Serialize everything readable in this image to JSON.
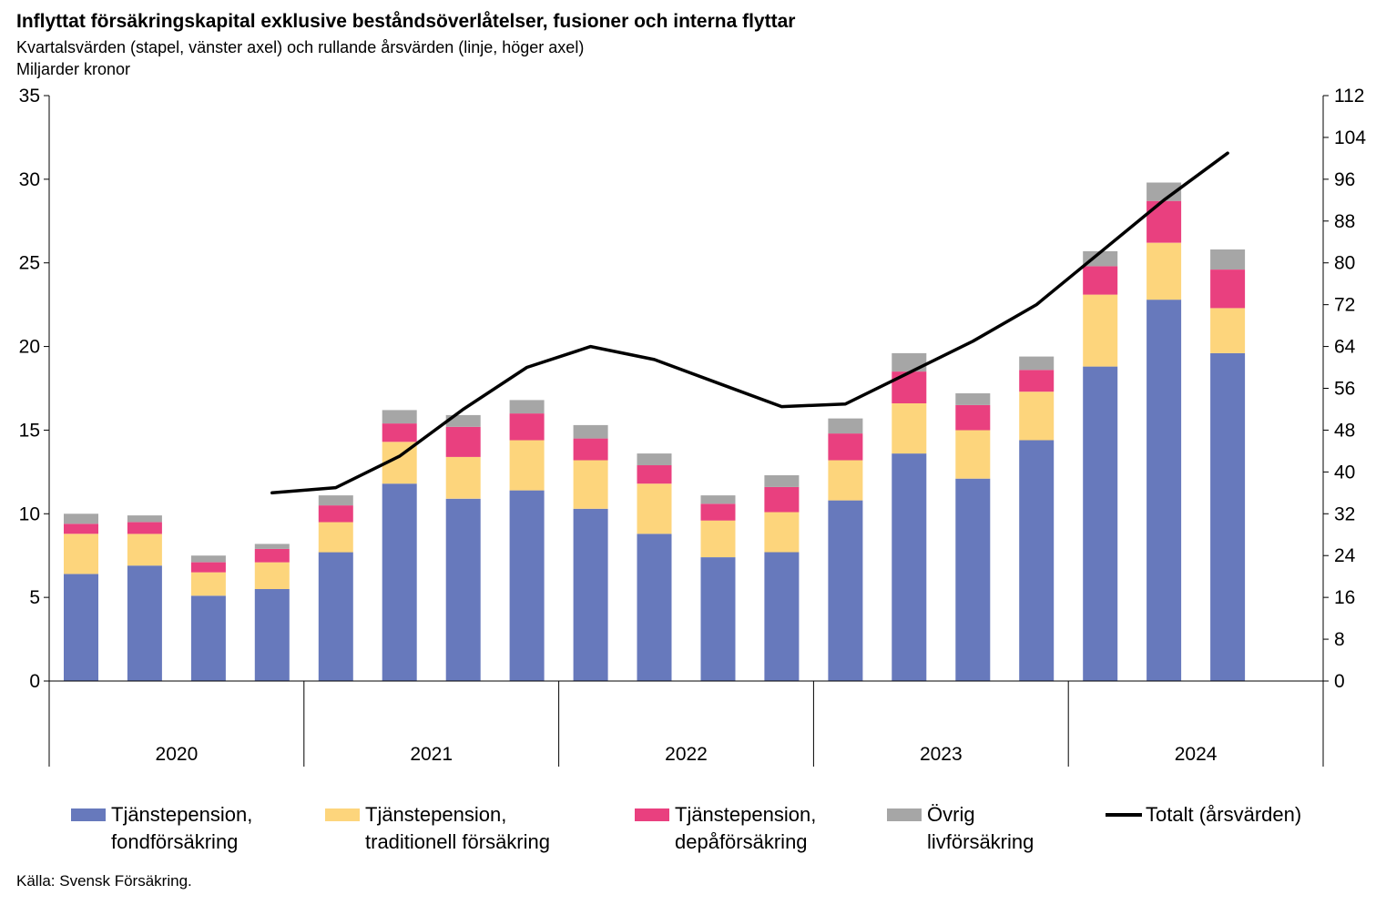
{
  "title": "Inflyttat försäkringskapital  exklusive beståndsöverlåtelser, fusioner och interna flyttar",
  "subtitle": "Kvartalsvärden (stapel, vänster axel) och rullande årsvärden (linje, höger axel)",
  "unit": "Miljarder kronor",
  "source": "Källa: Svensk Försäkring.",
  "colors": {
    "fond": "#6779bc",
    "traditionell": "#fdd57c",
    "depa": "#e9407f",
    "ovrig": "#a6a6a6",
    "totalt": "#000000",
    "axis": "#000000"
  },
  "legend": [
    {
      "key": "fond",
      "line1": "Tjänstepension,",
      "line2": "fondförsäkring"
    },
    {
      "key": "traditionell",
      "line1": "Tjänstepension,",
      "line2": "traditionell försäkring"
    },
    {
      "key": "depa",
      "line1": "Tjänstepension,",
      "line2": "depåförsäkring"
    },
    {
      "key": "ovrig",
      "line1": "Övrig",
      "line2": "livförsäkring"
    },
    {
      "key": "totalt",
      "line1": "Totalt (årsvärden)",
      "line2": ""
    }
  ],
  "chart_data": {
    "type": "bar",
    "stacked": true,
    "years": [
      "2020",
      "2021",
      "2022",
      "2023",
      "2024"
    ],
    "quarters_per_year": 4,
    "left_axis": {
      "min": 0,
      "max": 35,
      "ticks": [
        0,
        5,
        10,
        15,
        20,
        25,
        30,
        35
      ]
    },
    "right_axis": {
      "min": 0,
      "max": 112,
      "ticks": [
        0,
        8,
        16,
        24,
        32,
        40,
        48,
        56,
        64,
        72,
        80,
        88,
        96,
        104,
        112
      ]
    },
    "series": [
      {
        "name": "Tjänstepension, fondförsäkring",
        "key": "fond",
        "values": [
          6.4,
          6.9,
          5.1,
          5.5,
          7.7,
          11.8,
          10.9,
          11.4,
          10.3,
          8.8,
          7.4,
          7.7,
          10.8,
          13.6,
          12.1,
          14.4,
          18.8,
          22.8,
          19.6
        ]
      },
      {
        "name": "Tjänstepension, traditionell försäkring",
        "key": "traditionell",
        "values": [
          2.4,
          1.9,
          1.4,
          1.6,
          1.8,
          2.5,
          2.5,
          3.0,
          2.9,
          3.0,
          2.2,
          2.4,
          2.4,
          3.0,
          2.9,
          2.9,
          4.3,
          3.4,
          2.7
        ]
      },
      {
        "name": "Tjänstepension, depåförsäkring",
        "key": "depa",
        "values": [
          0.6,
          0.7,
          0.6,
          0.8,
          1.0,
          1.1,
          1.8,
          1.6,
          1.3,
          1.1,
          1.0,
          1.5,
          1.6,
          1.9,
          1.5,
          1.3,
          1.7,
          2.5,
          2.3
        ]
      },
      {
        "name": "Övrig livförsäkring",
        "key": "ovrig",
        "values": [
          0.6,
          0.4,
          0.4,
          0.3,
          0.6,
          0.8,
          0.7,
          0.8,
          0.8,
          0.7,
          0.5,
          0.7,
          0.9,
          1.1,
          0.7,
          0.8,
          0.9,
          1.1,
          1.2
        ]
      }
    ],
    "line": {
      "name": "Totalt (årsvärden)",
      "axis": "right",
      "start_index": 3,
      "values": [
        36,
        37,
        43,
        52,
        60,
        64,
        61.5,
        57,
        52.5,
        53,
        59,
        65,
        72,
        82,
        92,
        101
      ]
    },
    "gridlines": false
  }
}
